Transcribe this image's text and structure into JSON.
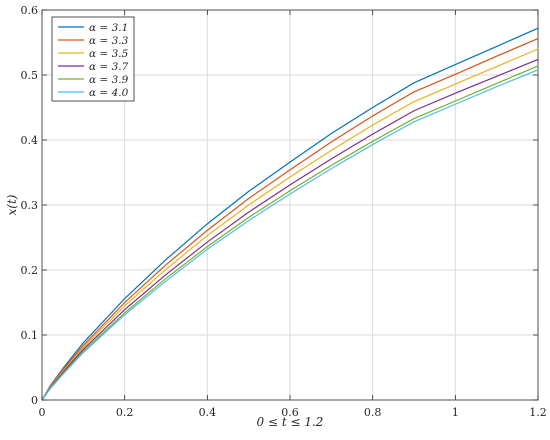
{
  "chart_data": {
    "type": "line",
    "xlabel": "0 ≤ t ≤ 1.2",
    "ylabel": "x(t)",
    "xlim": [
      0,
      1.2
    ],
    "ylim": [
      0,
      0.6
    ],
    "x_ticks": [
      0,
      0.2,
      0.4,
      0.6,
      0.8,
      1,
      1.2
    ],
    "y_ticks": [
      0,
      0.1,
      0.2,
      0.3,
      0.4,
      0.5,
      0.6
    ],
    "x_tick_labels": [
      "0",
      "0.2",
      "0.4",
      "0.6",
      "0.8",
      "1",
      "1.2"
    ],
    "y_tick_labels": [
      "0",
      "0.1",
      "0.2",
      "0.3",
      "0.4",
      "0.5",
      "0.6"
    ],
    "grid": true,
    "legend_position": "top-left",
    "x": [
      0,
      0.02,
      0.05,
      0.1,
      0.2,
      0.3,
      0.4,
      0.5,
      0.6,
      0.7,
      0.8,
      0.9,
      1.0,
      1.1,
      1.2
    ],
    "series": [
      {
        "name": "α = 3.1",
        "color": "#0072BD",
        "values": [
          0.0,
          0.022,
          0.048,
          0.088,
          0.156,
          0.216,
          0.271,
          0.321,
          0.366,
          0.41,
          0.45,
          0.488,
          0.516,
          0.544,
          0.572
        ]
      },
      {
        "name": "α = 3.3",
        "color": "#D95319",
        "values": [
          0.0,
          0.021,
          0.046,
          0.084,
          0.15,
          0.208,
          0.261,
          0.31,
          0.354,
          0.397,
          0.437,
          0.474,
          0.501,
          0.529,
          0.556
        ]
      },
      {
        "name": "α = 3.5",
        "color": "#EDB120",
        "values": [
          0.0,
          0.02,
          0.044,
          0.081,
          0.145,
          0.201,
          0.253,
          0.3,
          0.343,
          0.384,
          0.423,
          0.459,
          0.486,
          0.513,
          0.54
        ]
      },
      {
        "name": "α = 3.7",
        "color": "#7E2F8E",
        "values": [
          0.0,
          0.019,
          0.042,
          0.078,
          0.139,
          0.193,
          0.243,
          0.289,
          0.331,
          0.371,
          0.409,
          0.445,
          0.472,
          0.498,
          0.524
        ]
      },
      {
        "name": "α = 3.9",
        "color": "#77AC30",
        "values": [
          0.0,
          0.018,
          0.04,
          0.075,
          0.134,
          0.187,
          0.236,
          0.281,
          0.322,
          0.361,
          0.398,
          0.433,
          0.46,
          0.487,
          0.514
        ]
      },
      {
        "name": "α = 4.0",
        "color": "#4DBEEE",
        "values": [
          0.0,
          0.0175,
          0.039,
          0.073,
          0.131,
          0.183,
          0.232,
          0.276,
          0.317,
          0.356,
          0.393,
          0.428,
          0.455,
          0.482,
          0.508
        ]
      }
    ]
  }
}
